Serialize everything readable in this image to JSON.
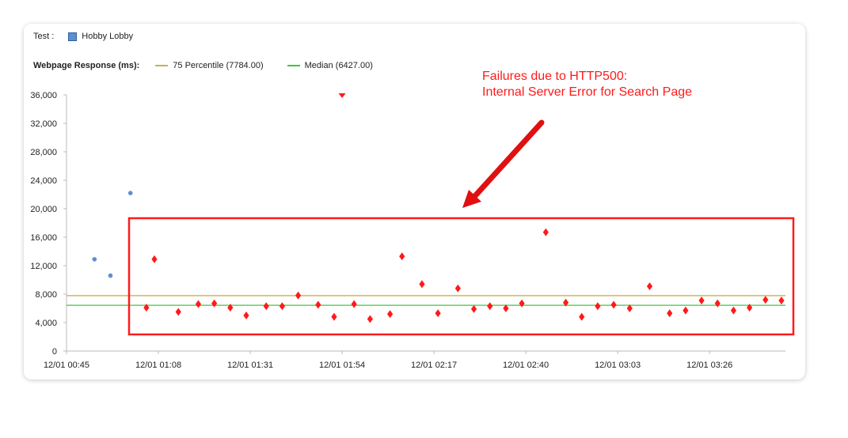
{
  "legend": {
    "test_label": "Test :",
    "test_name": "Hobby Lobby",
    "test_color": "#5b8fd1",
    "response_label": "Webpage Response (ms):",
    "p75_label": "75 Percentile (7784.00)",
    "p75_color": "#c8b24a",
    "median_label": "Median (6427.00)",
    "median_color": "#3cc83c"
  },
  "annotation": {
    "line1": "Failures due to HTTP500:",
    "line2": "Internal Server Error for Search Page",
    "color": "#ff1a1a"
  },
  "chart_data": {
    "type": "scatter",
    "title": "",
    "xlabel": "",
    "ylabel": "",
    "ylim": [
      0,
      36000
    ],
    "yticks": [
      0,
      4000,
      8000,
      12000,
      16000,
      20000,
      24000,
      28000,
      32000,
      36000
    ],
    "ytick_labels": [
      "0",
      "4,000",
      "8,000",
      "12,000",
      "16,000",
      "20,000",
      "24,000",
      "28,000",
      "32,000",
      "36,000"
    ],
    "xlim": [
      "12/01 00:45",
      "12/01 03:45"
    ],
    "xtick_labels": [
      "12/01 00:45",
      "12/01 01:08",
      "12/01 01:31",
      "12/01 01:54",
      "12/01 02:17",
      "12/01 02:40",
      "12/01 03:03",
      "12/01 03:26"
    ],
    "reference_lines": [
      {
        "label": "75 Percentile (7784.00)",
        "value": 7784
      },
      {
        "label": "Median (6427.00)",
        "value": 6427
      }
    ],
    "series": [
      {
        "name": "Hobby Lobby",
        "marker": "circle",
        "color": "#5b8fd1",
        "points": [
          {
            "x": "12/01 00:52",
            "y": 12900
          },
          {
            "x": "12/01 00:56",
            "y": 10600
          },
          {
            "x": "12/01 01:01",
            "y": 22200
          }
        ]
      },
      {
        "marker": "diamond",
        "color": "#ff1a1a",
        "points": [
          {
            "x": "12/01 01:05",
            "y": 6100
          },
          {
            "x": "12/01 01:07",
            "y": 12900
          },
          {
            "x": "12/01 01:13",
            "y": 5500
          },
          {
            "x": "12/01 01:18",
            "y": 6600
          },
          {
            "x": "12/01 01:22",
            "y": 6700
          },
          {
            "x": "12/01 01:26",
            "y": 6100
          },
          {
            "x": "12/01 01:30",
            "y": 5000
          },
          {
            "x": "12/01 01:35",
            "y": 6300
          },
          {
            "x": "12/01 01:39",
            "y": 6300
          },
          {
            "x": "12/01 01:43",
            "y": 7800
          },
          {
            "x": "12/01 01:48",
            "y": 6500
          },
          {
            "x": "12/01 01:52",
            "y": 4800
          },
          {
            "x": "12/01 01:57",
            "y": 6600
          },
          {
            "x": "12/01 02:01",
            "y": 4500
          },
          {
            "x": "12/01 02:06",
            "y": 5200
          },
          {
            "x": "12/01 02:09",
            "y": 13300
          },
          {
            "x": "12/01 02:14",
            "y": 9400
          },
          {
            "x": "12/01 02:18",
            "y": 5300
          },
          {
            "x": "12/01 02:23",
            "y": 8800
          },
          {
            "x": "12/01 02:27",
            "y": 5900
          },
          {
            "x": "12/01 02:31",
            "y": 6300
          },
          {
            "x": "12/01 02:35",
            "y": 6000
          },
          {
            "x": "12/01 02:39",
            "y": 6700
          },
          {
            "x": "12/01 02:45",
            "y": 16700
          },
          {
            "x": "12/01 02:50",
            "y": 6800
          },
          {
            "x": "12/01 02:54",
            "y": 4800
          },
          {
            "x": "12/01 02:58",
            "y": 6300
          },
          {
            "x": "12/01 03:02",
            "y": 6500
          },
          {
            "x": "12/01 03:06",
            "y": 6000
          },
          {
            "x": "12/01 03:11",
            "y": 9100
          },
          {
            "x": "12/01 03:16",
            "y": 5300
          },
          {
            "x": "12/01 03:20",
            "y": 5700
          },
          {
            "x": "12/01 03:24",
            "y": 7100
          },
          {
            "x": "12/01 03:28",
            "y": 6700
          },
          {
            "x": "12/01 03:32",
            "y": 5700
          },
          {
            "x": "12/01 03:36",
            "y": 6100
          },
          {
            "x": "12/01 03:40",
            "y": 7200
          },
          {
            "x": "12/01 03:44",
            "y": 7100
          }
        ]
      }
    ],
    "offscale_points": [
      {
        "x": "12/01 01:54",
        "y": 36000
      }
    ]
  }
}
